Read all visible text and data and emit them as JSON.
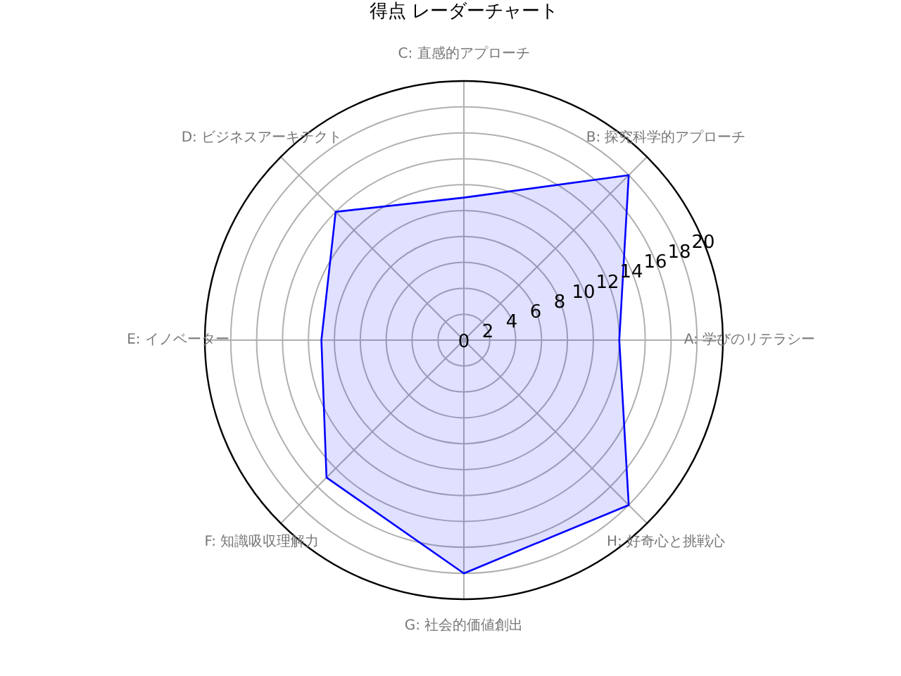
{
  "chart_data": {
    "type": "radar",
    "title": "得点 レーダーチャート",
    "categories": [
      "C: 直感的アプローチ",
      "B: 探究科学的アプローチ",
      "A: 学びのリテラシー",
      "H: 好奇心と挑戦心",
      "G: 社会的価値創出",
      "F: 知識吸収理解力",
      "E: イノベーター",
      "D: ビジネスアーキテクト"
    ],
    "series": [
      {
        "color": "#0000ff",
        "values": [
          11,
          18,
          12,
          18,
          18,
          15,
          11,
          14
        ]
      }
    ],
    "ylim": [
      0,
      20
    ],
    "yticks": [
      0,
      2,
      4,
      6,
      8,
      10,
      12,
      14,
      16,
      18,
      20
    ],
    "grid": true
  }
}
